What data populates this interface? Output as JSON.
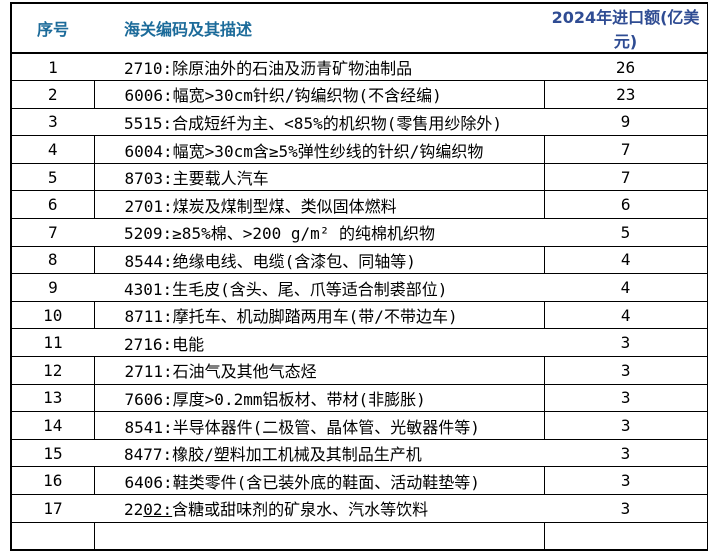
{
  "colors": {
    "header_left_text": "#1c6b9a",
    "header_right_text": "#2f4c93",
    "border": "#000000",
    "body_text": "#000000",
    "background": "#ffffff"
  },
  "table": {
    "headers": {
      "num": "序号",
      "desc": "海关编码及其描述",
      "value": "2024年进口额(亿美元)"
    },
    "rows": [
      {
        "num": "1",
        "code": "2710:",
        "code_underlined": "",
        "desc": "除原油外的石油及沥青矿物油制品",
        "value": "26",
        "dividers": false
      },
      {
        "num": "2",
        "code": "6006:",
        "code_underlined": "",
        "desc": "幅宽>30cm针织/钩编织物(不含经编)",
        "value": "23",
        "dividers": true
      },
      {
        "num": "3",
        "code": "5515:",
        "code_underlined": "",
        "desc": "合成短纤为主、<85%的机织物(零售用纱除外)",
        "value": "9",
        "dividers": false
      },
      {
        "num": "4",
        "code": "6004:",
        "code_underlined": "",
        "desc": "幅宽>30cm含≥5%弹性纱线的针织/钩编织物",
        "value": "7",
        "dividers": true
      },
      {
        "num": "5",
        "code": "8703:",
        "code_underlined": "",
        "desc": "主要载人汽车",
        "value": "7",
        "dividers": true
      },
      {
        "num": "6",
        "code": "2701:",
        "code_underlined": "",
        "desc": "煤炭及煤制型煤、类似固体燃料",
        "value": "6",
        "dividers": true
      },
      {
        "num": "7",
        "code": "5209:",
        "code_underlined": "",
        "desc": "≥85%棉、>200 g/m² 的纯棉机织物",
        "value": "5",
        "dividers": false
      },
      {
        "num": "8",
        "code": "8544:",
        "code_underlined": "",
        "desc": "绝缘电线、电缆(含漆包、同轴等)",
        "value": "4",
        "dividers": true
      },
      {
        "num": "9",
        "code": "4301:",
        "code_underlined": "",
        "desc": "生毛皮(含头、尾、爪等适合制裘部位)",
        "value": "4",
        "dividers": false
      },
      {
        "num": "10",
        "code": "8711:",
        "code_underlined": "",
        "desc": "摩托车、机动脚踏两用车(带/不带边车)",
        "value": "4",
        "dividers": true
      },
      {
        "num": "11",
        "code": "2716:",
        "code_underlined": "",
        "desc": "电能",
        "value": "3",
        "dividers": false
      },
      {
        "num": "12",
        "code": "2711:",
        "code_underlined": "",
        "desc": "石油气及其他气态烃",
        "value": "3",
        "dividers": true
      },
      {
        "num": "13",
        "code": "7606:",
        "code_underlined": "",
        "desc": "厚度>0.2mm铝板材、带材(非膨胀)",
        "value": "3",
        "dividers": true
      },
      {
        "num": "14",
        "code": "8541:",
        "code_underlined": "",
        "desc": "半导体器件(二极管、晶体管、光敏器件等)",
        "value": "3",
        "dividers": true
      },
      {
        "num": "15",
        "code": "8477:",
        "code_underlined": "",
        "desc": "橡胶/塑料加工机械及其制品生产机",
        "value": "3",
        "dividers": false
      },
      {
        "num": "16",
        "code": "6406:",
        "code_underlined": "",
        "desc": "鞋类零件(含已装外底的鞋面、活动鞋垫等)",
        "value": "3",
        "dividers": true
      },
      {
        "num": "17",
        "code": "22",
        "code_underlined": "02:",
        "desc": "含糖或甜味剂的矿泉水、汽水等饮料",
        "value": "3",
        "dividers": false
      },
      {
        "num": "",
        "code": "",
        "code_underlined": "",
        "desc": "",
        "value": "",
        "dividers": true
      }
    ]
  }
}
